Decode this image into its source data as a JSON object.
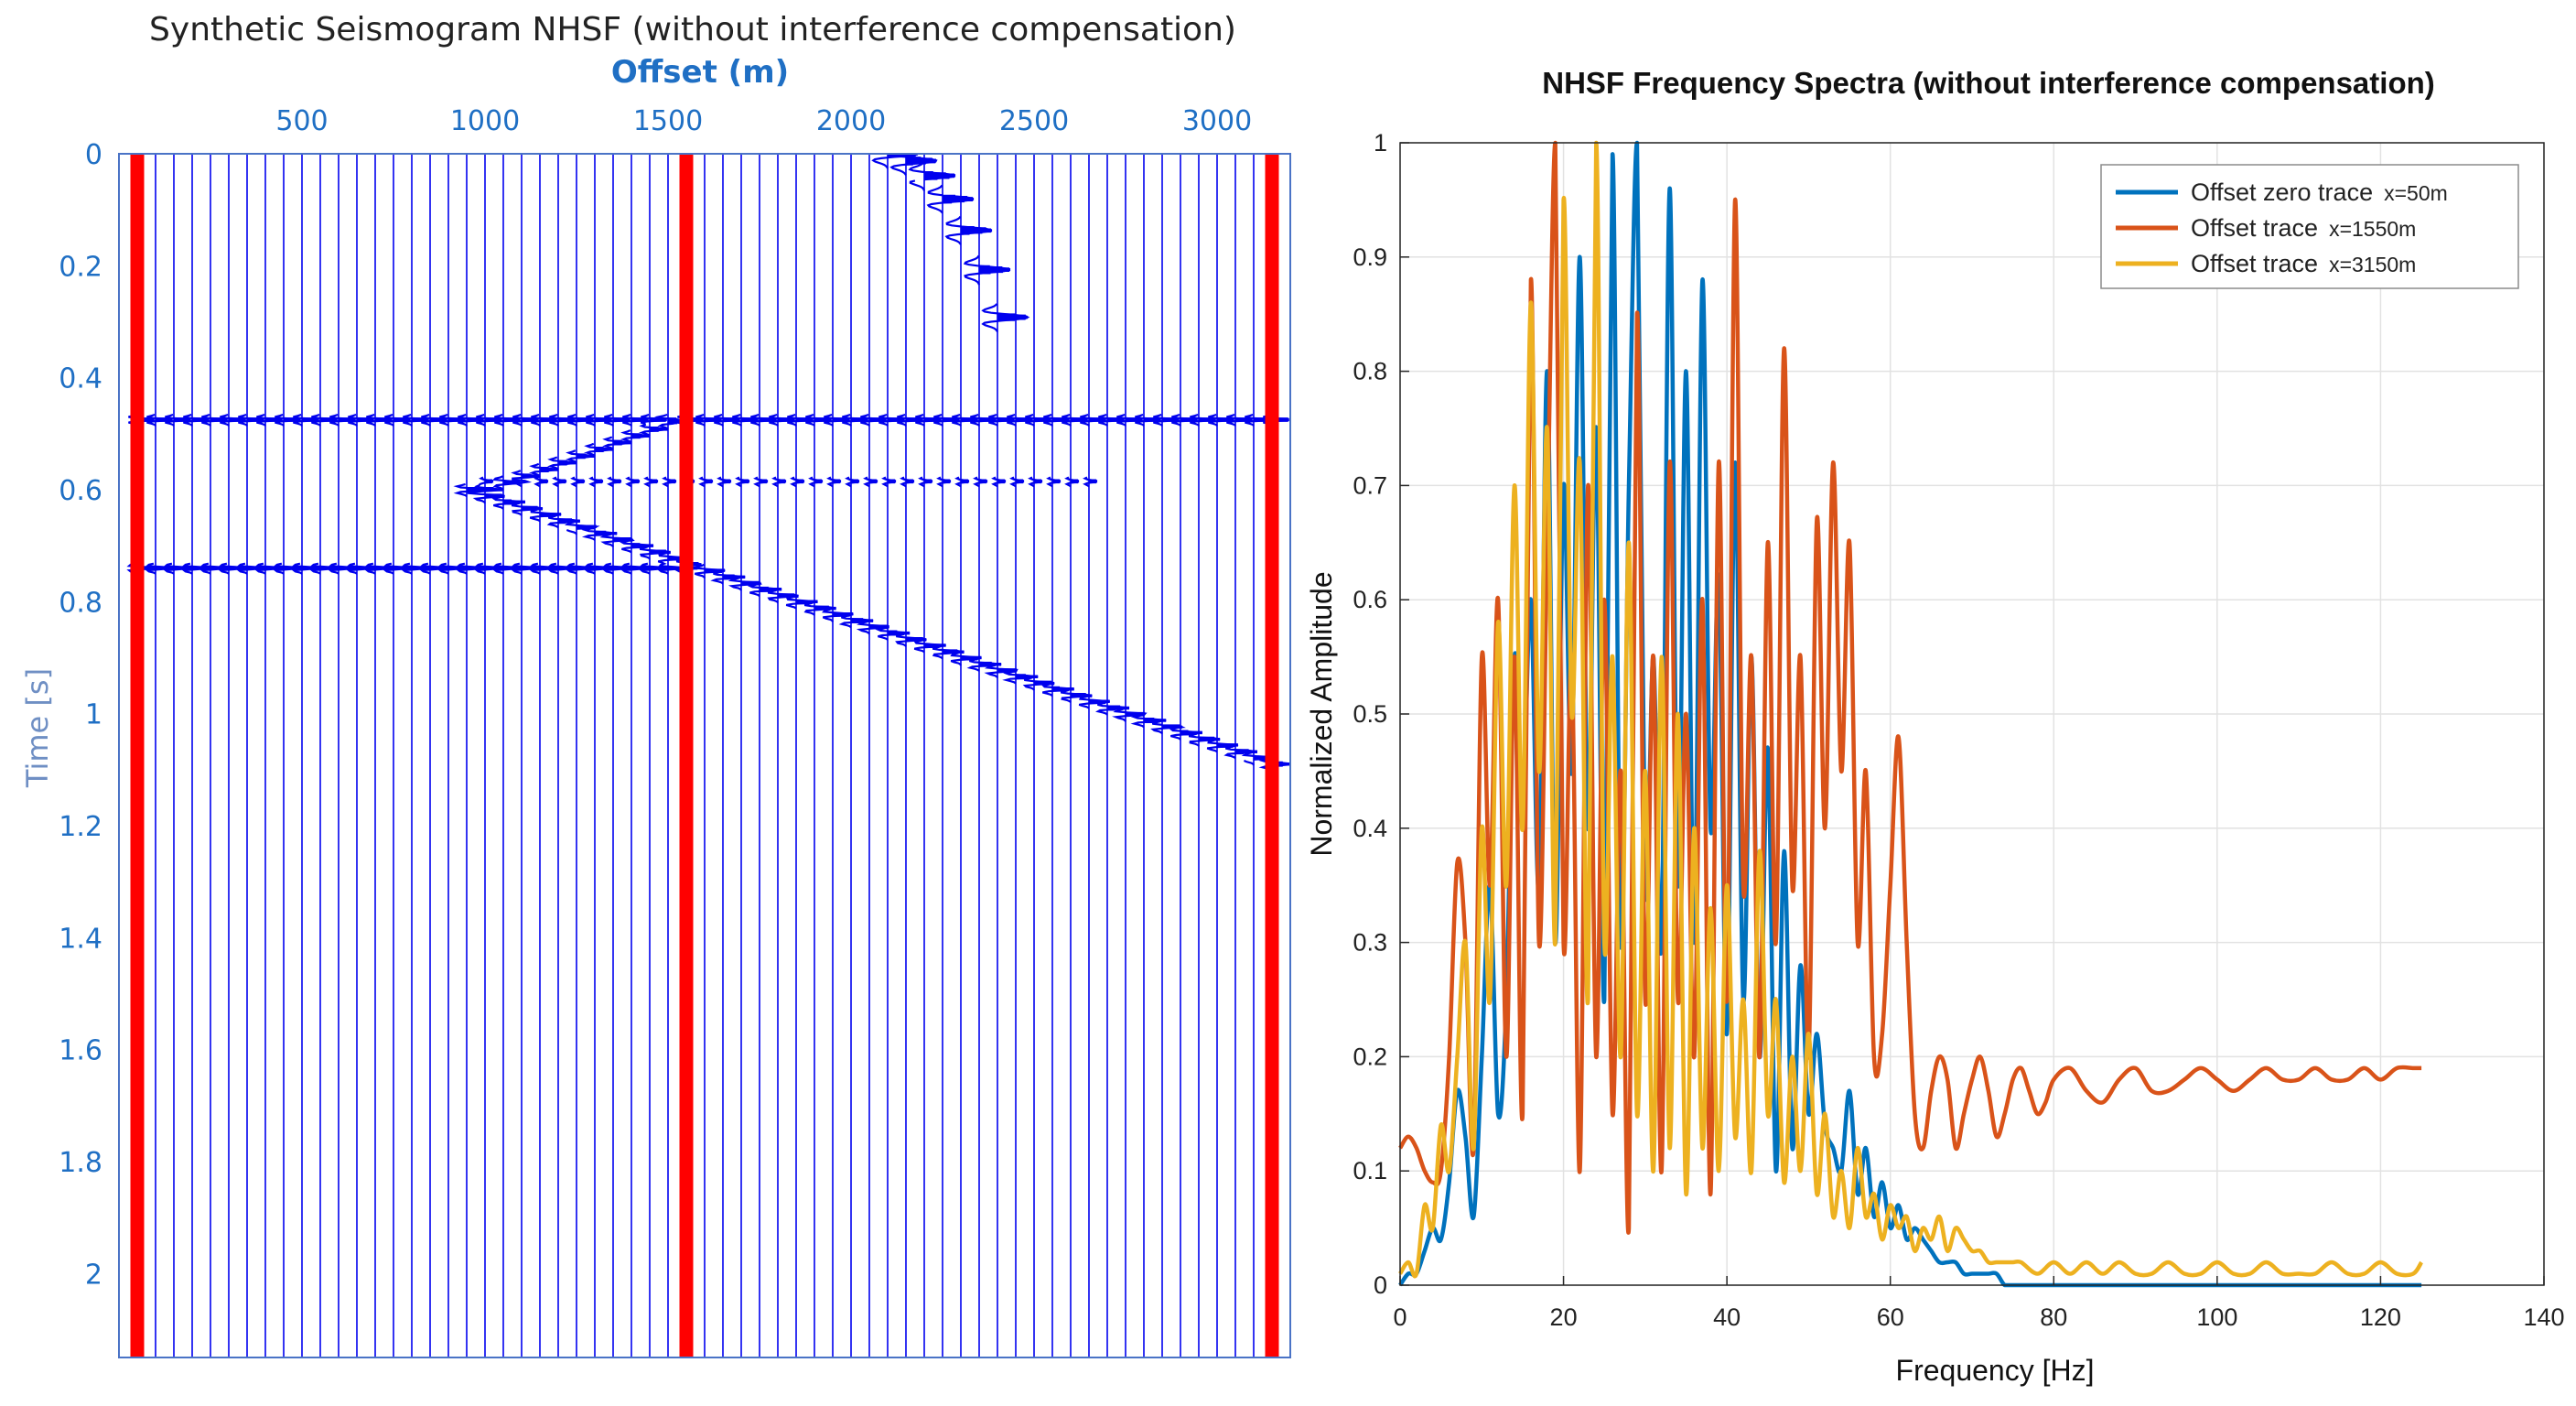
{
  "chart_data": [
    {
      "type": "seismogram",
      "title": "Synthetic Seismogram NHSF (without interference compensation)",
      "xlabel": "Offset (m)",
      "ylabel": "Time [s]",
      "xlim": [
        0,
        3200
      ],
      "ylim": [
        0,
        2.15
      ],
      "x_ticks": [
        500,
        1000,
        1500,
        2000,
        2500,
        3000
      ],
      "x_tick_labels": [
        "500",
        "1000",
        "1500",
        "2000",
        "2500",
        "3000"
      ],
      "y_ticks": [
        0,
        0.2,
        0.4,
        0.6,
        0.8,
        1,
        1.2,
        1.4,
        1.6,
        1.8,
        2
      ],
      "y_tick_labels": [
        "0",
        "0.2",
        "0.4",
        "0.6",
        "0.8",
        "1",
        "1.2",
        "1.4",
        "1.6",
        "1.8",
        "2"
      ],
      "trace_spacing_m": 50,
      "trace_first_m": 50,
      "trace_last_m": 3150,
      "highlighted_traces_m": [
        50,
        1550,
        3150
      ],
      "trace_color": "#0000ee",
      "highlight_color": "#ff0000",
      "events": [
        {
          "name": "direct-wave",
          "kind": "hyperbola",
          "x0": 2100,
          "t0": 0.0,
          "x_max": 2420,
          "t_max": 0.33
        },
        {
          "name": "reflection-1",
          "kind": "horizontal",
          "t0": 0.475,
          "x_min": 50,
          "x_max": 3150
        },
        {
          "name": "diffraction-1",
          "kind": "hyperbola",
          "x0": 1000,
          "t0": 0.6,
          "x_min": 1000,
          "x_max": 1500
        },
        {
          "name": "reflection-2",
          "kind": "horizontal-weak",
          "t0": 0.585,
          "x_min": 1000,
          "x_max": 2650
        },
        {
          "name": "reflection-3",
          "kind": "horizontal",
          "t0": 0.74,
          "x_min": 50,
          "x_max": 1550
        },
        {
          "name": "dipping-event",
          "kind": "linear",
          "x_start": 950,
          "t_start": 0.6,
          "x_end": 3150,
          "t_end": 1.09
        }
      ]
    },
    {
      "type": "line",
      "title": "NHSF Frequency Spectra (without interference compensation)",
      "xlabel": "Frequency [Hz]",
      "ylabel": "Normalized Amplitude",
      "xlim": [
        0,
        140
      ],
      "ylim": [
        0,
        1
      ],
      "x_ticks": [
        0,
        20,
        40,
        60,
        80,
        100,
        120,
        140
      ],
      "x_tick_labels": [
        "0",
        "20",
        "40",
        "60",
        "80",
        "100",
        "120",
        "140"
      ],
      "y_ticks": [
        0,
        0.1,
        0.2,
        0.3,
        0.4,
        0.5,
        0.6,
        0.7,
        0.8,
        0.9,
        1
      ],
      "y_tick_labels": [
        "0",
        "0.1",
        "0.2",
        "0.3",
        "0.4",
        "0.5",
        "0.6",
        "0.7",
        "0.8",
        "0.9",
        "1"
      ],
      "grid": true,
      "legend_position": "top-right",
      "series": [
        {
          "name": "Offset zero trace",
          "suffix": "x=50m",
          "color": "#0072bd",
          "x": [
            0,
            1,
            2,
            3,
            4,
            5,
            6,
            7,
            8,
            9,
            10,
            11,
            12,
            13,
            14,
            15,
            16,
            17,
            18,
            19,
            20,
            21,
            22,
            23,
            24,
            25,
            26,
            27,
            28,
            29,
            30,
            31,
            32,
            33,
            34,
            35,
            36,
            37,
            38,
            39,
            40,
            41,
            42,
            43,
            44,
            45,
            46,
            47,
            48,
            49,
            50,
            51,
            52,
            53,
            54,
            55,
            56,
            57,
            58,
            59,
            60,
            61,
            62,
            63,
            64,
            65,
            66,
            67,
            68,
            69,
            70,
            71,
            72,
            73,
            74,
            75,
            76,
            78,
            80,
            85,
            90,
            100,
            110,
            120,
            125
          ],
          "y": [
            0.0,
            0.01,
            0.01,
            0.03,
            0.05,
            0.04,
            0.09,
            0.17,
            0.13,
            0.06,
            0.2,
            0.35,
            0.15,
            0.25,
            0.55,
            0.42,
            0.6,
            0.35,
            0.8,
            0.3,
            0.7,
            0.45,
            0.9,
            0.4,
            0.75,
            0.25,
            0.99,
            0.3,
            0.7,
            1.0,
            0.35,
            0.55,
            0.3,
            0.96,
            0.35,
            0.8,
            0.3,
            0.88,
            0.4,
            0.62,
            0.22,
            0.72,
            0.25,
            0.55,
            0.2,
            0.47,
            0.1,
            0.38,
            0.12,
            0.28,
            0.15,
            0.22,
            0.14,
            0.12,
            0.1,
            0.17,
            0.08,
            0.12,
            0.06,
            0.09,
            0.05,
            0.07,
            0.04,
            0.05,
            0.04,
            0.03,
            0.02,
            0.02,
            0.02,
            0.01,
            0.01,
            0.01,
            0.01,
            0.01,
            0.0,
            0.0,
            0.0,
            0.0,
            0.0,
            0.0,
            0.0,
            0.0,
            0.0,
            0.0,
            0.0
          ]
        },
        {
          "name": "Offset trace",
          "suffix": "x=1550m",
          "color": "#d95319",
          "x": [
            0,
            1,
            2,
            3,
            4,
            5,
            6,
            7,
            8,
            9,
            10,
            11,
            12,
            13,
            14,
            15,
            16,
            17,
            18,
            19,
            20,
            21,
            22,
            23,
            24,
            25,
            26,
            27,
            28,
            29,
            30,
            31,
            32,
            33,
            34,
            35,
            36,
            37,
            38,
            39,
            40,
            41,
            42,
            43,
            44,
            45,
            46,
            47,
            48,
            49,
            50,
            51,
            52,
            53,
            54,
            55,
            56,
            57,
            58,
            59,
            60,
            61,
            62,
            63,
            64,
            65,
            66,
            67,
            68,
            69,
            70,
            71,
            72,
            73,
            74,
            75,
            76,
            77,
            78,
            79,
            80,
            82,
            84,
            86,
            88,
            90,
            92,
            94,
            96,
            98,
            100,
            102,
            104,
            106,
            108,
            110,
            112,
            114,
            116,
            118,
            120,
            122,
            124,
            125
          ],
          "y": [
            0.12,
            0.13,
            0.12,
            0.1,
            0.09,
            0.1,
            0.2,
            0.37,
            0.3,
            0.12,
            0.55,
            0.35,
            0.6,
            0.2,
            0.55,
            0.15,
            0.88,
            0.3,
            0.65,
            1.0,
            0.3,
            0.55,
            0.1,
            0.7,
            0.2,
            0.6,
            0.15,
            0.45,
            0.05,
            0.85,
            0.25,
            0.55,
            0.1,
            0.72,
            0.25,
            0.5,
            0.2,
            0.6,
            0.08,
            0.72,
            0.25,
            0.95,
            0.35,
            0.55,
            0.2,
            0.65,
            0.3,
            0.82,
            0.35,
            0.55,
            0.2,
            0.67,
            0.4,
            0.72,
            0.45,
            0.65,
            0.3,
            0.45,
            0.2,
            0.22,
            0.35,
            0.48,
            0.3,
            0.15,
            0.12,
            0.17,
            0.2,
            0.18,
            0.12,
            0.15,
            0.18,
            0.2,
            0.17,
            0.13,
            0.15,
            0.18,
            0.19,
            0.17,
            0.15,
            0.16,
            0.18,
            0.19,
            0.17,
            0.16,
            0.18,
            0.19,
            0.17,
            0.17,
            0.18,
            0.19,
            0.18,
            0.17,
            0.18,
            0.19,
            0.18,
            0.18,
            0.19,
            0.18,
            0.18,
            0.19,
            0.18,
            0.19,
            0.19,
            0.19
          ]
        },
        {
          "name": "Offset trace",
          "suffix": "x=3150m",
          "color": "#edb120",
          "x": [
            0,
            1,
            2,
            3,
            4,
            5,
            6,
            7,
            8,
            9,
            10,
            11,
            12,
            13,
            14,
            15,
            16,
            17,
            18,
            19,
            20,
            21,
            22,
            23,
            24,
            25,
            26,
            27,
            28,
            29,
            30,
            31,
            32,
            33,
            34,
            35,
            36,
            37,
            38,
            39,
            40,
            41,
            42,
            43,
            44,
            45,
            46,
            47,
            48,
            49,
            50,
            51,
            52,
            53,
            54,
            55,
            56,
            57,
            58,
            59,
            60,
            61,
            62,
            63,
            64,
            65,
            66,
            67,
            68,
            69,
            70,
            71,
            72,
            73,
            74,
            75,
            76,
            78,
            80,
            82,
            84,
            86,
            88,
            90,
            92,
            94,
            96,
            98,
            100,
            102,
            104,
            106,
            108,
            110,
            112,
            114,
            116,
            118,
            120,
            122,
            124,
            125
          ],
          "y": [
            0.01,
            0.02,
            0.01,
            0.07,
            0.05,
            0.14,
            0.1,
            0.2,
            0.3,
            0.12,
            0.4,
            0.25,
            0.58,
            0.35,
            0.7,
            0.4,
            0.86,
            0.45,
            0.75,
            0.3,
            0.95,
            0.5,
            0.72,
            0.25,
            1.0,
            0.3,
            0.55,
            0.2,
            0.65,
            0.15,
            0.45,
            0.1,
            0.55,
            0.12,
            0.5,
            0.08,
            0.4,
            0.12,
            0.33,
            0.1,
            0.35,
            0.13,
            0.25,
            0.1,
            0.38,
            0.15,
            0.25,
            0.09,
            0.2,
            0.1,
            0.22,
            0.08,
            0.15,
            0.06,
            0.1,
            0.05,
            0.12,
            0.06,
            0.08,
            0.04,
            0.07,
            0.05,
            0.06,
            0.03,
            0.05,
            0.04,
            0.06,
            0.03,
            0.05,
            0.04,
            0.03,
            0.03,
            0.02,
            0.02,
            0.02,
            0.02,
            0.02,
            0.01,
            0.02,
            0.01,
            0.02,
            0.01,
            0.02,
            0.01,
            0.01,
            0.02,
            0.01,
            0.01,
            0.02,
            0.01,
            0.01,
            0.02,
            0.01,
            0.01,
            0.01,
            0.02,
            0.01,
            0.01,
            0.02,
            0.01,
            0.01,
            0.02
          ]
        }
      ]
    }
  ]
}
